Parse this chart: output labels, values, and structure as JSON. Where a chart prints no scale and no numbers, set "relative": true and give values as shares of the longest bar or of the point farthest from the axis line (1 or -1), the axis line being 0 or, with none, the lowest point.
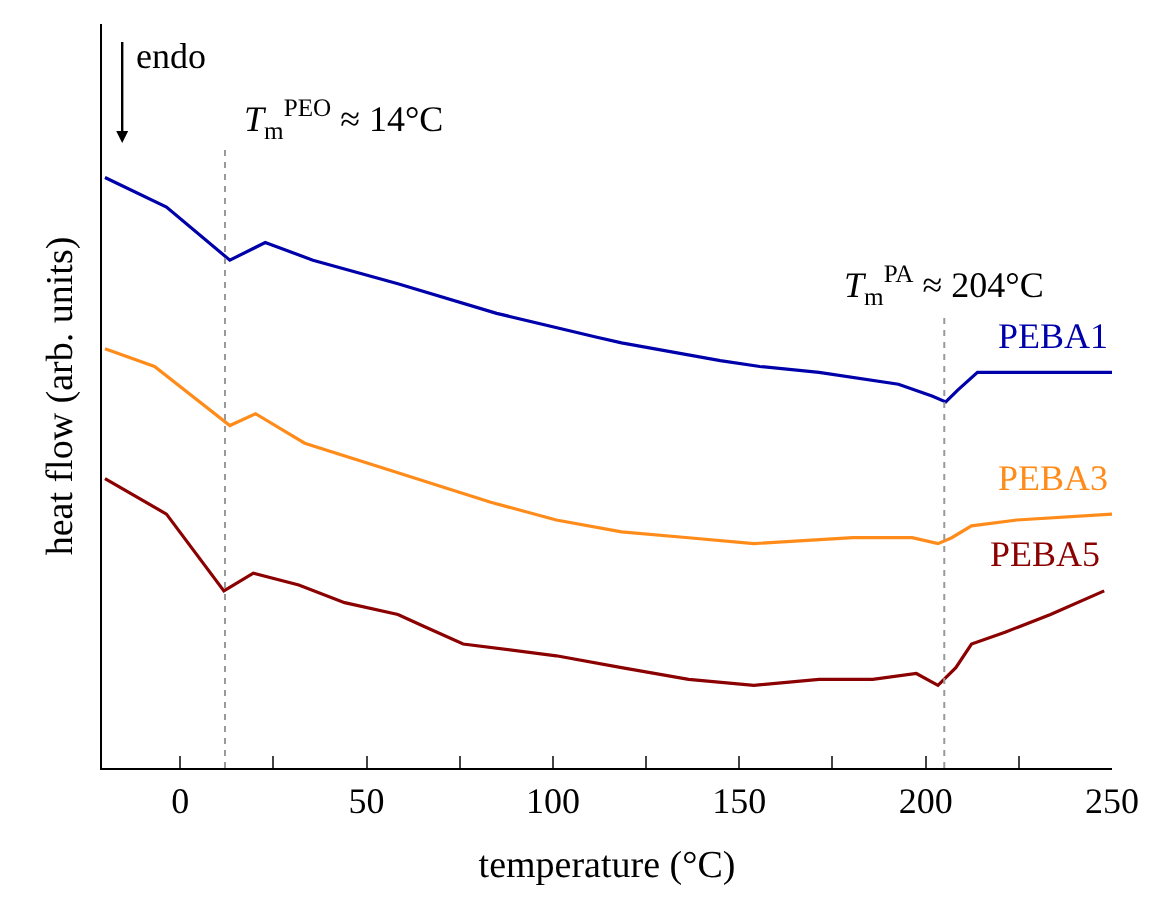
{
  "chart_data": {
    "type": "line",
    "relative": true,
    "xlabel": "temperature (°C)",
    "ylabel": "heat flow (arb. units)",
    "xlim": [
      -21,
      250
    ],
    "xticks": [
      0,
      {
        "value": 25,
        "label": null
      },
      50,
      {
        "value": 75,
        "label": null
      },
      100,
      {
        "value": 125,
        "label": null
      },
      150,
      {
        "value": 175,
        "label": null
      },
      200,
      {
        "value": 225,
        "label": null
      },
      250
    ],
    "legend": false,
    "marker": "none",
    "line_style": "solid",
    "annotations": [
      "endo"
    ],
    "ref_lines": [
      {
        "axis": "x",
        "value": 12,
        "label": "T$_{m}$$^{PEO}$ ≈ 14°C",
        "color": "#999999",
        "line_style": "dotted"
      },
      {
        "axis": "x",
        "value": 205,
        "label": "T$_{m}$$^{PA}$ ≈ 204°C",
        "color": "#999999",
        "line_style": "dotted"
      }
    ],
    "series": [
      {
        "name": "PEBA1",
        "color": "#0000aa",
        "x": [
          -20.2,
          -3.7,
          13.3,
          22.8,
          35.6,
          58.4,
          84.9,
          111.5,
          118.4,
          144.9,
          155.5,
          171.4,
          192.7,
          201.7,
          205.4,
          208.6,
          213.9,
          224.5,
          250
        ],
        "values": [
          1.0,
          0.95,
          0.86,
          0.89,
          0.86,
          0.82,
          0.77,
          0.73,
          0.72,
          0.69,
          0.68,
          0.67,
          0.65,
          0.63,
          0.62,
          0.64,
          0.67,
          0.67,
          0.67
        ]
      },
      {
        "name": "PEBA3",
        "color": "#ff8c1a",
        "x": [
          -20.2,
          -6.9,
          13.3,
          20.2,
          33.4,
          58.4,
          83.3,
          100.9,
          118.4,
          136.4,
          153.9,
          180.5,
          196.4,
          203.3,
          207.0,
          212.3,
          224.5,
          250
        ],
        "values": [
          0.71,
          0.68,
          0.58,
          0.6,
          0.55,
          0.5,
          0.45,
          0.42,
          0.4,
          0.39,
          0.38,
          0.39,
          0.39,
          0.38,
          0.39,
          0.41,
          0.42,
          0.43
        ]
      },
      {
        "name": "PEBA5",
        "color": "#8b0000",
        "x": [
          -20.2,
          -3.7,
          11.7,
          19.6,
          31.8,
          44.1,
          58.4,
          65.3,
          75.9,
          100.9,
          118.4,
          136.4,
          153.9,
          171.4,
          185.8,
          197.5,
          203.3,
          208.1,
          212.3,
          221.3,
          233.5,
          247.9
        ],
        "values": [
          0.49,
          0.43,
          0.3,
          0.33,
          0.31,
          0.28,
          0.26,
          0.24,
          0.21,
          0.19,
          0.17,
          0.15,
          0.14,
          0.15,
          0.15,
          0.16,
          0.14,
          0.17,
          0.21,
          0.23,
          0.26,
          0.3
        ]
      }
    ]
  }
}
